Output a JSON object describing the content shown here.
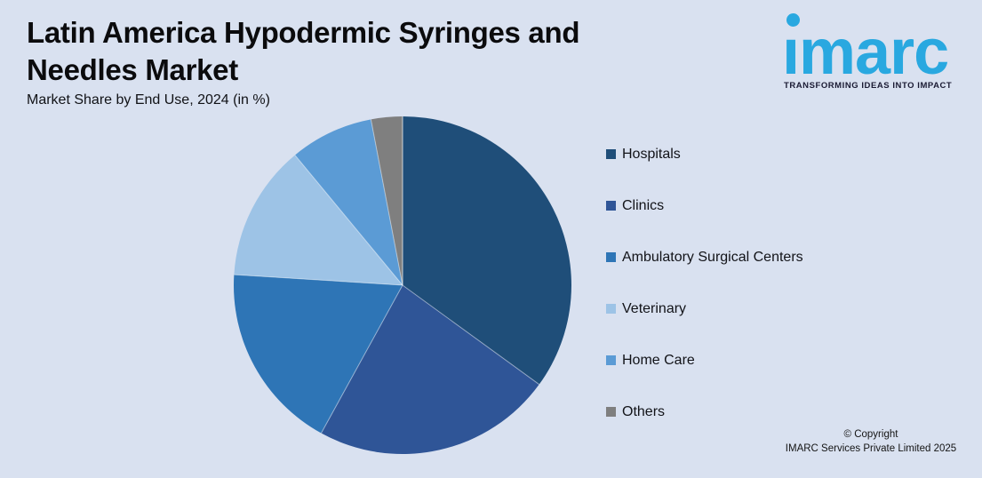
{
  "page": {
    "background_color": "#D9E1F0"
  },
  "header": {
    "title": "Latin America Hypodermic Syringes and Needles Market",
    "subtitle": "Market Share by End Use, 2024 (in %)"
  },
  "logo": {
    "brand": "imarc",
    "tagline": "TRANSFORMING IDEAS INTO IMPACT",
    "brand_color": "#29A8E0"
  },
  "footer": {
    "copyright_line1": "© Copyright",
    "copyright_line2": "IMARC Services Private Limited 2025"
  },
  "chart_data": {
    "type": "pie",
    "title": "Latin America Hypodermic Syringes and Needles Market",
    "subtitle": "Market Share by End Use, 2024 (in %)",
    "unit": "%",
    "categories": [
      "Hospitals",
      "Clinics",
      "Ambulatory Surgical Centers",
      "Veterinary",
      "Home Care",
      "Others"
    ],
    "values": [
      35,
      23,
      18,
      13,
      8,
      3
    ],
    "colors": [
      "#1F4E79",
      "#2F5597",
      "#2E75B6",
      "#9DC3E6",
      "#5B9BD5",
      "#7F7F7F"
    ],
    "start_angle_deg": 0,
    "direction": "clockwise",
    "legend_position": "right",
    "data_labels_visible": false
  }
}
